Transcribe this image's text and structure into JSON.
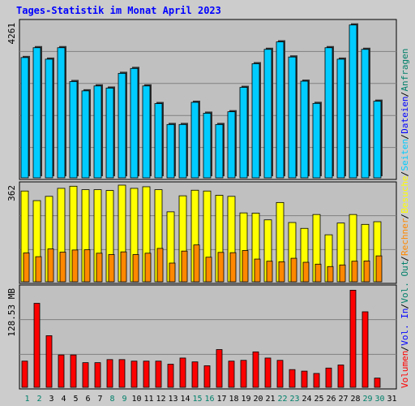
{
  "chart_data": {
    "type": "bar",
    "title": "Tages-Statistik im Monat April 2023",
    "categories": [
      "1",
      "2",
      "3",
      "4",
      "5",
      "6",
      "7",
      "8",
      "9",
      "10",
      "11",
      "12",
      "13",
      "14",
      "15",
      "16",
      "17",
      "18",
      "19",
      "20",
      "21",
      "22",
      "23",
      "24",
      "25",
      "26",
      "27",
      "28",
      "29",
      "30",
      "31"
    ],
    "weekend_days": [
      "1",
      "2",
      "8",
      "9",
      "15",
      "16",
      "22",
      "23",
      "29",
      "30"
    ],
    "panels": [
      {
        "id": "top",
        "max_label": "4261",
        "ymax": 4261,
        "series": [
          {
            "name": "Anfragen",
            "color": "#00806a",
            "values": [
              3305,
              3575,
              3260,
              3575,
              2645,
              2390,
              2525,
              2465,
              2870,
              3005,
              2525,
              2040,
              1465,
              1465,
              2075,
              1775,
              1465,
              1815,
              2485,
              3135,
              3530,
              3735,
              3320,
              2655,
              2045,
              3575,
              3260,
              4200,
              3530,
              2105,
              null
            ]
          },
          {
            "name": "Dateien",
            "color": "#0000ff",
            "values": [
              3305,
              3575,
              3260,
              3575,
              2645,
              2390,
              2525,
              2465,
              2870,
              3005,
              2525,
              2040,
              1465,
              1465,
              2075,
              1775,
              1465,
              1815,
              2485,
              3135,
              3530,
              3735,
              3320,
              2655,
              2045,
              3575,
              3260,
              4200,
              3530,
              2105,
              null
            ]
          },
          {
            "name": "Seiten",
            "color": "#00ccff",
            "values": [
              3305,
              3575,
              3260,
              3575,
              2645,
              2390,
              2525,
              2465,
              2870,
              3005,
              2525,
              2040,
              1465,
              1465,
              2075,
              1775,
              1465,
              1815,
              2485,
              3135,
              3530,
              3735,
              3320,
              2655,
              2045,
              3575,
              3260,
              4200,
              3530,
              2105,
              null
            ]
          }
        ]
      },
      {
        "id": "middle",
        "max_label": "362",
        "ymax": 362,
        "series": [
          {
            "name": "Besuche",
            "color": "#ffff00",
            "values": [
              340,
              304,
              320,
              350,
              358,
              345,
              345,
              342,
              362,
              350,
              356,
              345,
              262,
              322,
              343,
              340,
              324,
              320,
              258,
              257,
              232,
              297,
              222,
              200,
              252,
              176,
              220,
              252,
              215,
              225,
              null
            ]
          },
          {
            "name": "Rechner",
            "color": "#ff8800",
            "values": [
              108,
              94,
              123,
              111,
              119,
              120,
              107,
              102,
              112,
              102,
              107,
              125,
              70,
              115,
              138,
              92,
              110,
              109,
              117,
              85,
              77,
              75,
              88,
              73,
              66,
              57,
              63,
              77,
              78,
              97,
              null
            ]
          }
        ]
      },
      {
        "id": "bottom",
        "max_label": "128.53 MB",
        "ymax": 128.53,
        "series": [
          {
            "name": "Vol. Out",
            "color": "#00806a",
            "values": [
              null,
              null,
              null,
              null,
              null,
              null,
              null,
              null,
              null,
              null,
              null,
              null,
              null,
              null,
              null,
              null,
              null,
              null,
              null,
              null,
              null,
              null,
              null,
              null,
              null,
              null,
              null,
              null,
              null,
              null,
              null
            ]
          },
          {
            "name": "Vol. In",
            "color": "#0000ff",
            "values": [
              null,
              null,
              null,
              null,
              null,
              null,
              null,
              null,
              null,
              null,
              null,
              null,
              null,
              null,
              null,
              null,
              null,
              null,
              null,
              null,
              null,
              null,
              null,
              null,
              null,
              null,
              null,
              null,
              null,
              null,
              null
            ]
          },
          {
            "name": "Volumen",
            "color": "#ff0000",
            "values": [
              34,
              109,
              67,
              42,
              42,
              32,
              32,
              36,
              36,
              34,
              34,
              34,
              30,
              38,
              33,
              28,
              49,
              34,
              35,
              46,
              38,
              35,
              23,
              21,
              18,
              25,
              29,
              126,
              98,
              12,
              null
            ]
          }
        ]
      }
    ],
    "legend": [
      {
        "label": "Volumen",
        "color": "#ff0000",
        "slot": 0
      },
      {
        "label": "/",
        "color": "#000000",
        "slot": 1
      },
      {
        "label": "Vol. In",
        "color": "#0000ff",
        "slot": 2
      },
      {
        "label": "/",
        "color": "#000000",
        "slot": 3
      },
      {
        "label": "Vol. Out",
        "color": "#00806a",
        "slot": 4
      },
      {
        "label": "/",
        "color": "#000000",
        "slot": 5
      },
      {
        "label": "Rechner",
        "color": "#ff8800",
        "slot": 6
      },
      {
        "label": "/",
        "color": "#000000",
        "slot": 7
      },
      {
        "label": "Besuche",
        "color": "#ffff00",
        "slot": 8
      },
      {
        "label": "/",
        "color": "#000000",
        "slot": 9
      },
      {
        "label": "Seiten",
        "color": "#00ccff",
        "slot": 10
      },
      {
        "label": "/",
        "color": "#000000",
        "slot": 11
      },
      {
        "label": "Dateien",
        "color": "#0000ff",
        "slot": 12
      },
      {
        "label": "/",
        "color": "#000000",
        "slot": 13
      },
      {
        "label": "Anfragen",
        "color": "#00806a",
        "slot": 14
      }
    ],
    "grid": true,
    "legend_placement": "right",
    "colors": {
      "title": "#0000ff",
      "weekday_label": "#000000",
      "weekend_label": "#00806a",
      "panel_bg": "#c0c0c0",
      "grid": "#808080"
    }
  }
}
